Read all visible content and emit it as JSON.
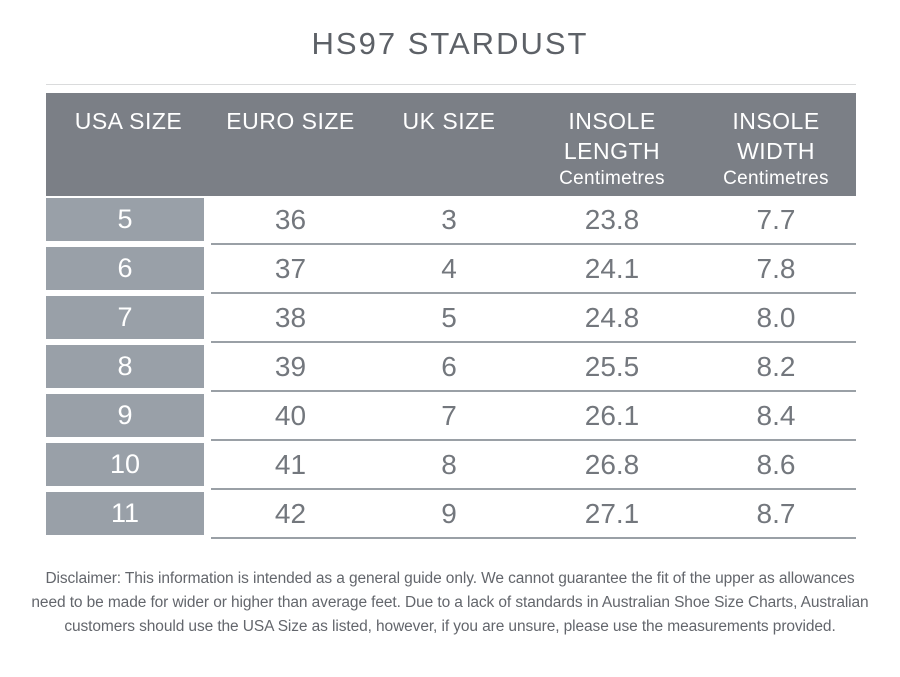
{
  "page": {
    "title": "HS97 STARDUST"
  },
  "table": {
    "columns": [
      {
        "label": "USA SIZE",
        "sublabel": ""
      },
      {
        "label": "EURO SIZE",
        "sublabel": ""
      },
      {
        "label": "UK SIZE",
        "sublabel": ""
      },
      {
        "label": "INSOLE LENGTH",
        "sublabel": "Centimetres"
      },
      {
        "label": "INSOLE WIDTH",
        "sublabel": "Centimetres"
      }
    ],
    "rows": [
      [
        "5",
        "36",
        "3",
        "23.8",
        "7.7"
      ],
      [
        "6",
        "37",
        "4",
        "24.1",
        "7.8"
      ],
      [
        "7",
        "38",
        "5",
        "24.8",
        "8.0"
      ],
      [
        "8",
        "39",
        "6",
        "25.5",
        "8.2"
      ],
      [
        "9",
        "40",
        "7",
        "26.1",
        "8.4"
      ],
      [
        "10",
        "41",
        "8",
        "26.8",
        "8.6"
      ],
      [
        "11",
        "42",
        "9",
        "27.1",
        "8.7"
      ]
    ]
  },
  "disclaimer": "Disclaimer: This information is intended as a general guide only. We cannot guarantee the fit of the upper as allowances need to be made for wider or higher than average feet. Due to a lack of standards in Australian Shoe Size Charts, Australian customers should use the USA Size as listed, however, if you are unsure, please use the measurements provided.",
  "colors": {
    "header_bg": "#7b7f86",
    "key_column_bg": "#99a0a8",
    "row_line": "#9aa0a6",
    "body_text": "#73777d",
    "title_text": "#5d6167",
    "disclaimer_text": "#63666c"
  },
  "chart_data": {
    "type": "table",
    "title": "HS97 STARDUST",
    "columns": [
      "USA SIZE",
      "EURO SIZE",
      "UK SIZE",
      "INSOLE LENGTH (Centimetres)",
      "INSOLE WIDTH (Centimetres)"
    ],
    "rows": [
      [
        5,
        36,
        3,
        23.8,
        7.7
      ],
      [
        6,
        37,
        4,
        24.1,
        7.8
      ],
      [
        7,
        38,
        5,
        24.8,
        8.0
      ],
      [
        8,
        39,
        6,
        25.5,
        8.2
      ],
      [
        9,
        40,
        7,
        26.1,
        8.4
      ],
      [
        10,
        41,
        8,
        26.8,
        8.6
      ],
      [
        11,
        42,
        9,
        27.1,
        8.7
      ]
    ],
    "layout_hints": {
      "key_column": "USA SIZE",
      "header_position": "top",
      "grid": "horizontal lines only"
    }
  }
}
